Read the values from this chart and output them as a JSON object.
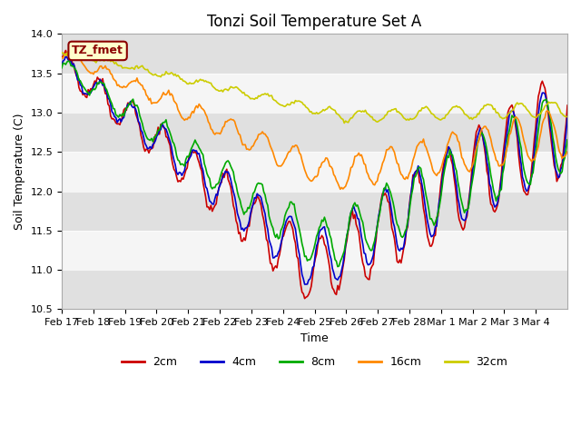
{
  "title": "Tonzi Soil Temperature Set A",
  "ylabel": "Soil Temperature (C)",
  "xlabel": "Time",
  "ylim": [
    10.5,
    14.0
  ],
  "yticks": [
    10.5,
    11.0,
    11.5,
    12.0,
    12.5,
    13.0,
    13.5,
    14.0
  ],
  "legend_label": "TZ_fmet",
  "legend_box_color": "#ffffcc",
  "legend_box_edge": "#8B0000",
  "legend_text_color": "#8B0000",
  "line_colors": {
    "2cm": "#cc0000",
    "4cm": "#0000cc",
    "8cm": "#00aa00",
    "16cm": "#ff8800",
    "32cm": "#cccc00"
  },
  "line_labels": [
    "2cm",
    "4cm",
    "8cm",
    "16cm",
    "32cm"
  ],
  "n_points": 384,
  "n_days": 16,
  "bg_color": "#e8e8e8",
  "band_colors": [
    "#e0e0e0",
    "#f5f5f5"
  ],
  "ytick_band_edges": [
    10.5,
    11.0,
    11.5,
    12.0,
    12.5,
    13.0,
    13.5,
    14.0
  ],
  "xtick_labels": [
    "Feb 17",
    "Feb 18",
    "Feb 19",
    "Feb 20",
    "Feb 21",
    "Feb 22",
    "Feb 23",
    "Feb 24",
    "Feb 25",
    "Feb 26",
    "Feb 27",
    "Feb 28",
    "Mar 1",
    "Mar 2",
    "Mar 3",
    "Mar 4"
  ],
  "linewidth": 1.2
}
